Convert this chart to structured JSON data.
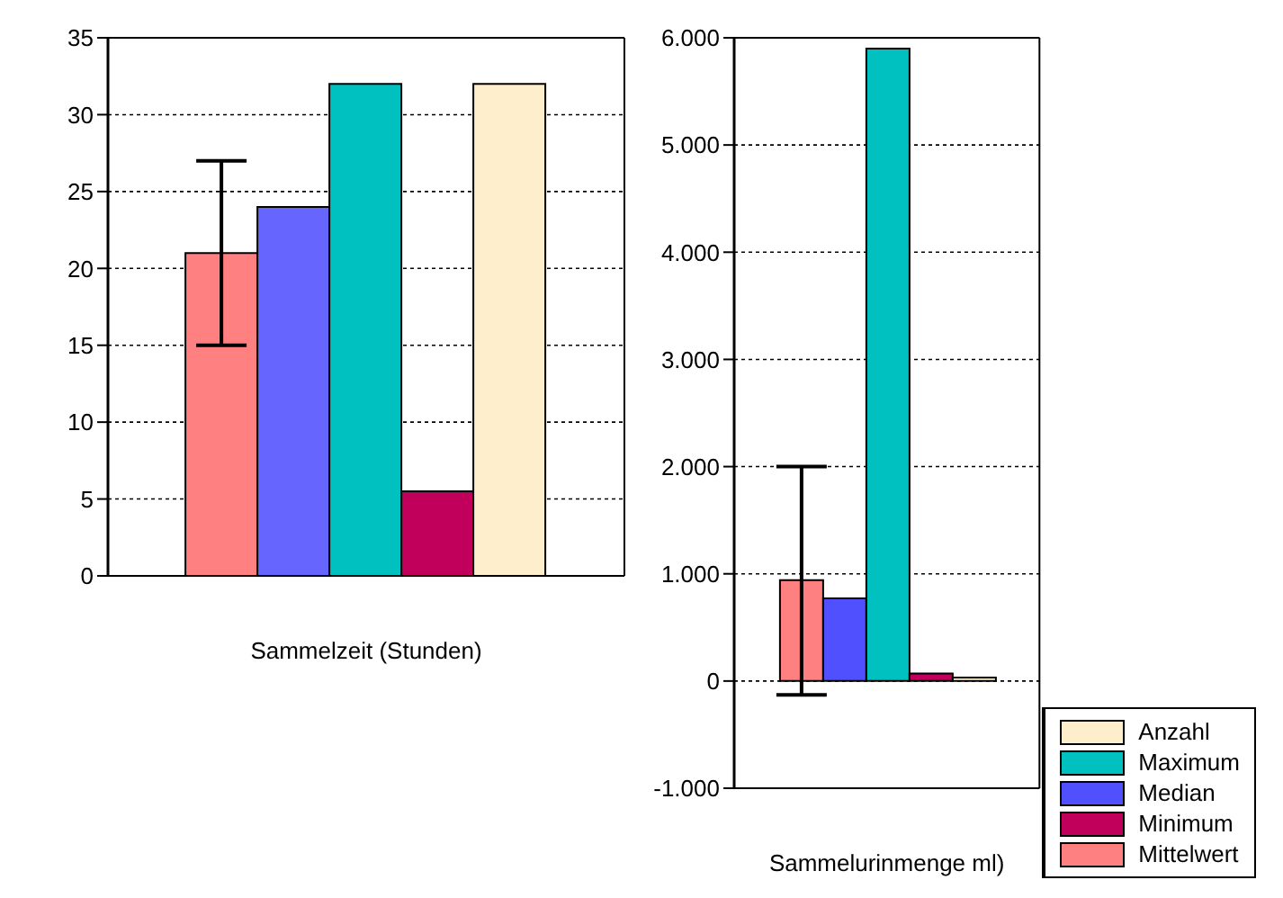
{
  "chart_data": [
    {
      "type": "bar",
      "xlabel": "Sammelzeit (Stunden)",
      "categories": [
        null
      ],
      "series": [
        {
          "color": "#ff8080",
          "values": [
            21
          ],
          "errors": [
            [
              15,
              27
            ]
          ]
        },
        {
          "color": "#6666ff",
          "values": [
            24
          ]
        },
        {
          "color": "#00c0c0",
          "values": [
            32
          ]
        },
        {
          "color": "#c0005a",
          "values": [
            5.5
          ]
        },
        {
          "color": "#ffeecc",
          "values": [
            32
          ]
        }
      ],
      "ylim": [
        0,
        35
      ],
      "yticks": [
        0,
        5,
        10,
        15,
        20,
        25,
        30,
        35
      ],
      "grid": "y",
      "legend": false
    },
    {
      "type": "bar",
      "xlabel": "Sammelurinmenge ml)",
      "categories": [
        null
      ],
      "series": [
        {
          "name": "Mittelwert",
          "color": "#ff8080",
          "values": [
            940
          ],
          "errors": [
            [
              -130,
              2000
            ]
          ]
        },
        {
          "name": "Median",
          "color": "#5050ff",
          "values": [
            770
          ]
        },
        {
          "name": "Maximum",
          "color": "#00c0c0",
          "values": [
            5900
          ]
        },
        {
          "name": "Minimum",
          "color": "#c0005a",
          "values": [
            70
          ]
        },
        {
          "name": "Anzahl",
          "color": "#ffeecc",
          "values": [
            32
          ]
        }
      ],
      "ylim": [
        -1000,
        6000
      ],
      "yticks": [
        {
          "value": -1000,
          "label": "-1.000"
        },
        0,
        {
          "value": 1000,
          "label": "1.000"
        },
        {
          "value": 2000,
          "label": "2.000"
        },
        {
          "value": 3000,
          "label": "3.000"
        },
        {
          "value": 4000,
          "label": "4.000"
        },
        {
          "value": 5000,
          "label": "5.000"
        },
        {
          "value": 6000,
          "label": "6.000"
        }
      ],
      "grid": "y",
      "legend": "bottom right"
    }
  ]
}
